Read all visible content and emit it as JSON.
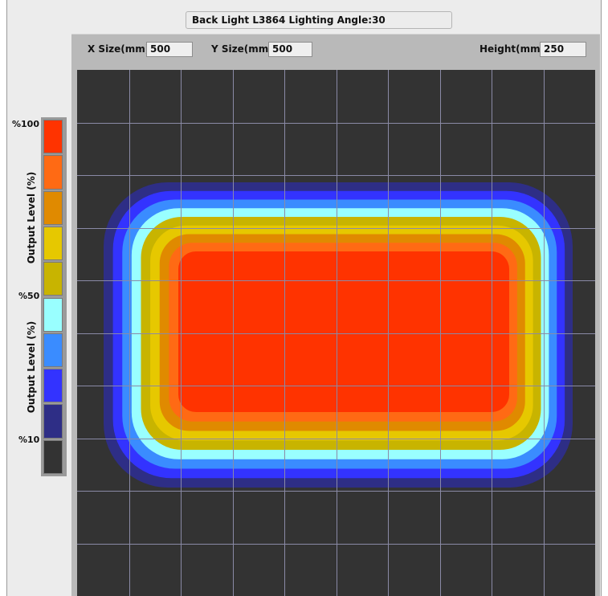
{
  "window": {
    "title": "Back Light L3864 Lighting Angle:30"
  },
  "controls": {
    "x_size_label": "X Size(mm)",
    "x_size_value": "500",
    "y_size_label": "Y Size(mm)",
    "y_size_value": "500",
    "height_label": "Height(mm)",
    "height_value": "250"
  },
  "legend": {
    "axis_label_top": "Output Level (%)",
    "axis_label_bottom": "Output Level (%)",
    "tick_100": "%100",
    "tick_50": "%50",
    "tick_10": "%10",
    "colors": [
      "#ff3300",
      "#ff6a14",
      "#e08a00",
      "#e6c800",
      "#c8b400",
      "#99ffff",
      "#3a8cff",
      "#3333ff",
      "#2e2e86",
      "#333333"
    ]
  },
  "heatmap": {
    "background_color": "#333333",
    "grid_color": "#8a8aa6",
    "grid_columns": 10,
    "grid_rows": 10,
    "band_colors": [
      "#2e2e86",
      "#3333ff",
      "#3a8cff",
      "#99ffff",
      "#c8b400",
      "#e6c800",
      "#e08a00",
      "#ff6a14",
      "#ff3300"
    ]
  }
}
